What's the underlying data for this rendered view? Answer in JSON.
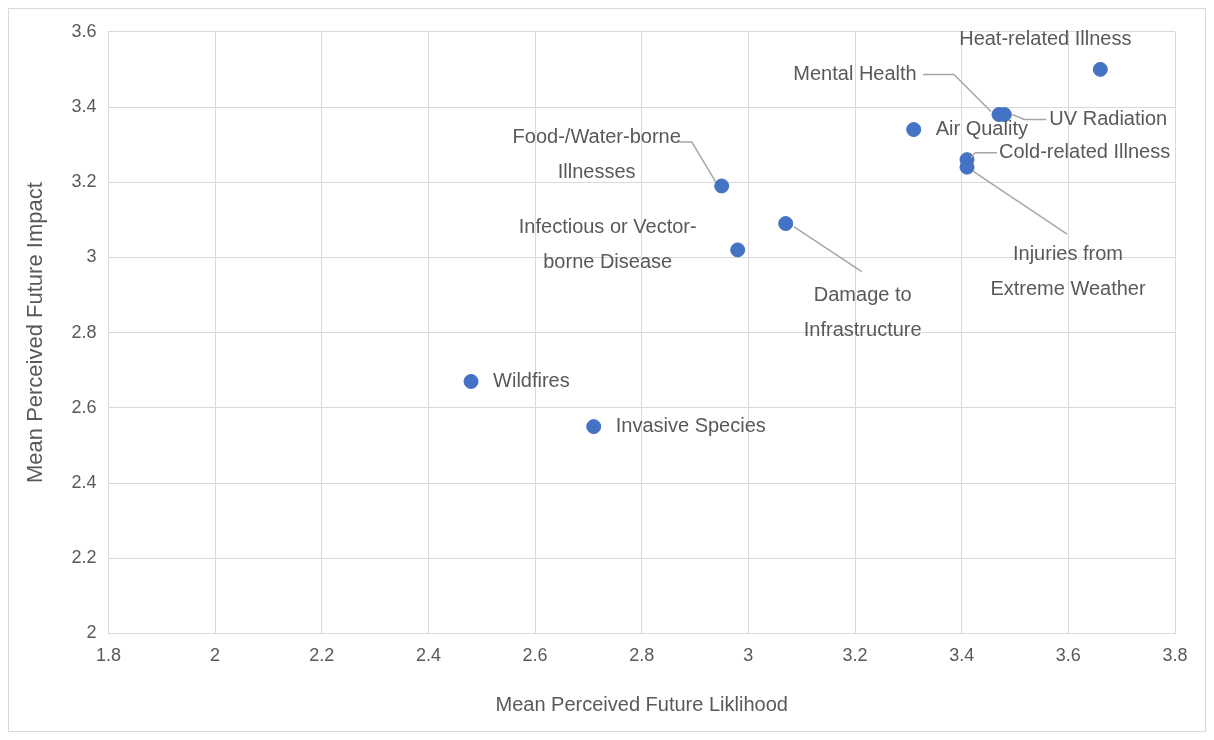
{
  "chart_data": {
    "type": "scatter",
    "xlabel": "Mean Perceived Future Liklihood",
    "ylabel": "Mean Perceived Future Impact",
    "x": [
      3.66,
      3.47,
      3.48,
      3.31,
      3.41,
      3.41,
      2.95,
      3.07,
      2.98,
      2.48,
      2.71
    ],
    "values": [
      3.5,
      3.38,
      3.38,
      3.34,
      3.26,
      3.24,
      3.19,
      3.09,
      3.02,
      2.67,
      2.55
    ],
    "color": "#4472c4",
    "marker": "circle",
    "grid": true,
    "xlim": [
      1.8,
      3.8
    ],
    "xticks": [
      1.8,
      2,
      2.2,
      2.4,
      2.6,
      2.8,
      3,
      3.2,
      3.4,
      3.6,
      3.8
    ],
    "ylim": [
      2,
      3.6
    ],
    "yticks": [
      2,
      2.2,
      2.4,
      2.6,
      2.8,
      3,
      3.2,
      3.4,
      3.6
    ],
    "annotations": [
      {
        "text": "Heat-related Illness",
        "x": 3.66,
        "y": 3.5
      },
      {
        "text": "Mental Health",
        "x": 3.47,
        "y": 3.38
      },
      {
        "text": "UV Radiation",
        "x": 3.48,
        "y": 3.38
      },
      {
        "text": "Air Quality",
        "x": 3.31,
        "y": 3.34
      },
      {
        "text": "Cold-related Illness",
        "x": 3.41,
        "y": 3.26
      },
      {
        "text": "Injuries from\nExtreme Weather",
        "x": 3.41,
        "y": 3.24
      },
      {
        "text": "Food-/Water-borne\nIllnesses",
        "x": 2.95,
        "y": 3.19
      },
      {
        "text": "Damage to\nInfrastructure",
        "x": 3.07,
        "y": 3.09
      },
      {
        "text": "Infectious or Vector-\nborne Disease",
        "x": 2.98,
        "y": 3.02
      },
      {
        "text": "Wildfires",
        "x": 2.48,
        "y": 2.67
      },
      {
        "text": "Invasive Species",
        "x": 2.71,
        "y": 2.55
      }
    ]
  }
}
